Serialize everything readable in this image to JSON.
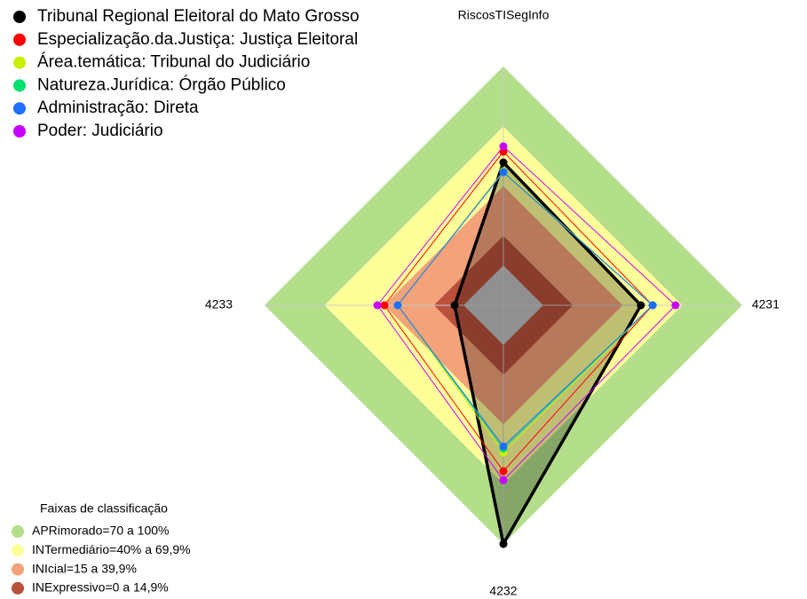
{
  "chart_data": {
    "type": "radar",
    "title": "RiscosTISegInfo",
    "categories": [
      "RiscosTISegInfo",
      "4231",
      "4232",
      "4233"
    ],
    "rlim": [
      -20,
      100
    ],
    "series": [
      {
        "name": "Tribunal Regional Eleitoral do Mato Grosso",
        "color": "#000000",
        "values": [
          51.8,
          49.1,
          100,
          4.5
        ]
      },
      {
        "name": "Especialização.da.Justiça: Justiça Eleitoral",
        "color": "#ff0000",
        "values": [
          57.2,
          55,
          63.4,
          39.8
        ]
      },
      {
        "name": "Área.temática: Tribunal do Judiciário",
        "color": "#c8f000",
        "values": [
          47.4,
          55,
          54,
          33
        ]
      },
      {
        "name": "Natureza.Jurídica: Órgão Público",
        "color": "#00e070",
        "values": [
          47,
          55,
          52,
          33.1
        ]
      },
      {
        "name": "Administração: Direta",
        "color": "#1f6fff",
        "values": [
          46.9,
          55,
          51,
          33.1
        ]
      },
      {
        "name": "Poder: Judiciário",
        "color": "#c800ff",
        "values": [
          59.9,
          66.5,
          67.9,
          43.3
        ]
      }
    ],
    "bands_title": "Faixas de classificação",
    "bands": [
      {
        "label": "APRimorado=70 a 100%",
        "min": 70,
        "max": 100,
        "color": "#b3de8a"
      },
      {
        "label": "INTermediário=40% a 69,9%",
        "min": 40,
        "max": 69.9,
        "color": "#ffff9a"
      },
      {
        "label": "INIcial=15 a 39,9%",
        "min": 15,
        "max": 39.9,
        "color": "#f3a27a"
      },
      {
        "label": "INExpressivo=0 a 14,9%",
        "min": 0,
        "max": 14.9,
        "color": "#b8503c"
      }
    ]
  }
}
